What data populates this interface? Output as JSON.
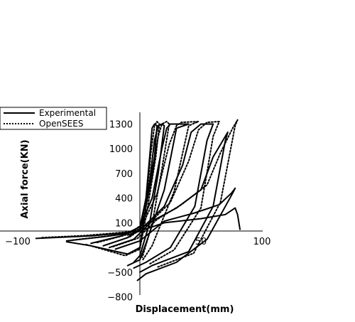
{
  "chart_data": {
    "type": "line",
    "title": "",
    "xlabel": "Displacement(mm)",
    "ylabel": "Axial force(KN)",
    "xlim": [
      -100,
      100
    ],
    "ylim": [
      -800,
      1400
    ],
    "x_ticks": [
      -100,
      50,
      100
    ],
    "y_ticks": [
      -800,
      -500,
      100,
      400,
      700,
      1000,
      1300
    ],
    "x_tick_labels": [
      "−100",
      "50",
      "100"
    ],
    "y_tick_labels": [
      "−800",
      "−500",
      "100",
      "400",
      "700",
      "1000",
      "1300"
    ],
    "grid": false,
    "legend": {
      "position": "top-left"
    },
    "series": [
      {
        "name": "Experimental",
        "color": "#000000",
        "dash": "solid",
        "loops": [
          {
            "x": [
              -85,
              -40,
              -10,
              0,
              5,
              8,
              10,
              12,
              14,
              12,
              5,
              0,
              -10,
              -40,
              -60
            ],
            "y": [
              -90,
              -60,
              -20,
              0,
              400,
              900,
              1250,
              1300,
              1280,
              900,
              300,
              -200,
              -280,
              -180,
              -130
            ]
          },
          {
            "x": [
              -60,
              -30,
              -10,
              0,
              8,
              12,
              15,
              18,
              20,
              15,
              8,
              0,
              -5
            ],
            "y": [
              -120,
              -70,
              -30,
              50,
              600,
              1100,
              1280,
              1300,
              1280,
              700,
              100,
              -300,
              -380
            ]
          },
          {
            "x": [
              -40,
              -15,
              0,
              10,
              18,
              22,
              25,
              40,
              30,
              20,
              5,
              0,
              -10
            ],
            "y": [
              -150,
              -60,
              50,
              400,
              1000,
              1250,
              1300,
              1300,
              1250,
              500,
              -150,
              -350,
              -420
            ]
          },
          {
            "x": [
              -30,
              -10,
              5,
              20,
              35,
              42,
              50,
              60,
              55,
              45,
              25,
              5,
              -5
            ],
            "y": [
              -180,
              -80,
              80,
              300,
              800,
              1200,
              1300,
              1300,
              1100,
              300,
              -200,
              -380,
              -450
            ]
          },
          {
            "x": [
              -25,
              -5,
              10,
              30,
              50,
              60,
              70,
              72,
              70,
              60,
              40,
              10,
              0
            ],
            "y": [
              -200,
              -100,
              120,
              280,
              500,
              900,
              1150,
              1200,
              1100,
              300,
              -250,
              -420,
              -500
            ]
          },
          {
            "x": [
              -20,
              0,
              20,
              45,
              65,
              75,
              78,
              76,
              70,
              55,
              30,
              5,
              -2
            ],
            "y": [
              -220,
              -120,
              120,
              220,
              320,
              460,
              520,
              460,
              300,
              -100,
              -380,
              -520,
              -600
            ]
          },
          {
            "x": [
              -10,
              20,
              50,
              70,
              78,
              80,
              82
            ],
            "y": [
              -50,
              100,
              150,
              200,
              280,
              200,
              20
            ]
          }
        ]
      },
      {
        "name": "OpenSEES",
        "color": "#000000",
        "dash": "dotted",
        "loops": [
          {
            "x": [
              -80,
              -45,
              -12,
              0,
              6,
              9,
              12,
              14,
              16,
              13,
              6,
              0,
              -12,
              -45
            ],
            "y": [
              -80,
              -55,
              -15,
              20,
              450,
              950,
              1280,
              1330,
              1300,
              900,
              250,
              -220,
              -300,
              -160
            ]
          },
          {
            "x": [
              -55,
              -25,
              -8,
              2,
              10,
              15,
              18,
              22,
              24,
              18,
              10,
              2
            ],
            "y": [
              -110,
              -60,
              -20,
              80,
              650,
              1150,
              1300,
              1330,
              1300,
              750,
              80,
              -320
            ]
          },
          {
            "x": [
              -35,
              -12,
              2,
              14,
              24,
              30,
              34,
              48,
              40,
              28,
              10,
              2
            ],
            "y": [
              -140,
              -50,
              70,
              450,
              1050,
              1280,
              1320,
              1330,
              1280,
              480,
              -180,
              -360
            ]
          },
          {
            "x": [
              -28,
              -8,
              8,
              25,
              40,
              48,
              55,
              65,
              60,
              50,
              28,
              8
            ],
            "y": [
              -170,
              -70,
              100,
              350,
              850,
              1230,
              1320,
              1330,
              1150,
              280,
              -230,
              -400
            ]
          },
          {
            "x": [
              -22,
              -2,
              14,
              34,
              55,
              66,
              76,
              80,
              78,
              66,
              44,
              14
            ],
            "y": [
              -190,
              -90,
              140,
              320,
              560,
              950,
              1250,
              1350,
              1280,
              350,
              -270,
              -440
            ]
          }
        ]
      }
    ]
  }
}
